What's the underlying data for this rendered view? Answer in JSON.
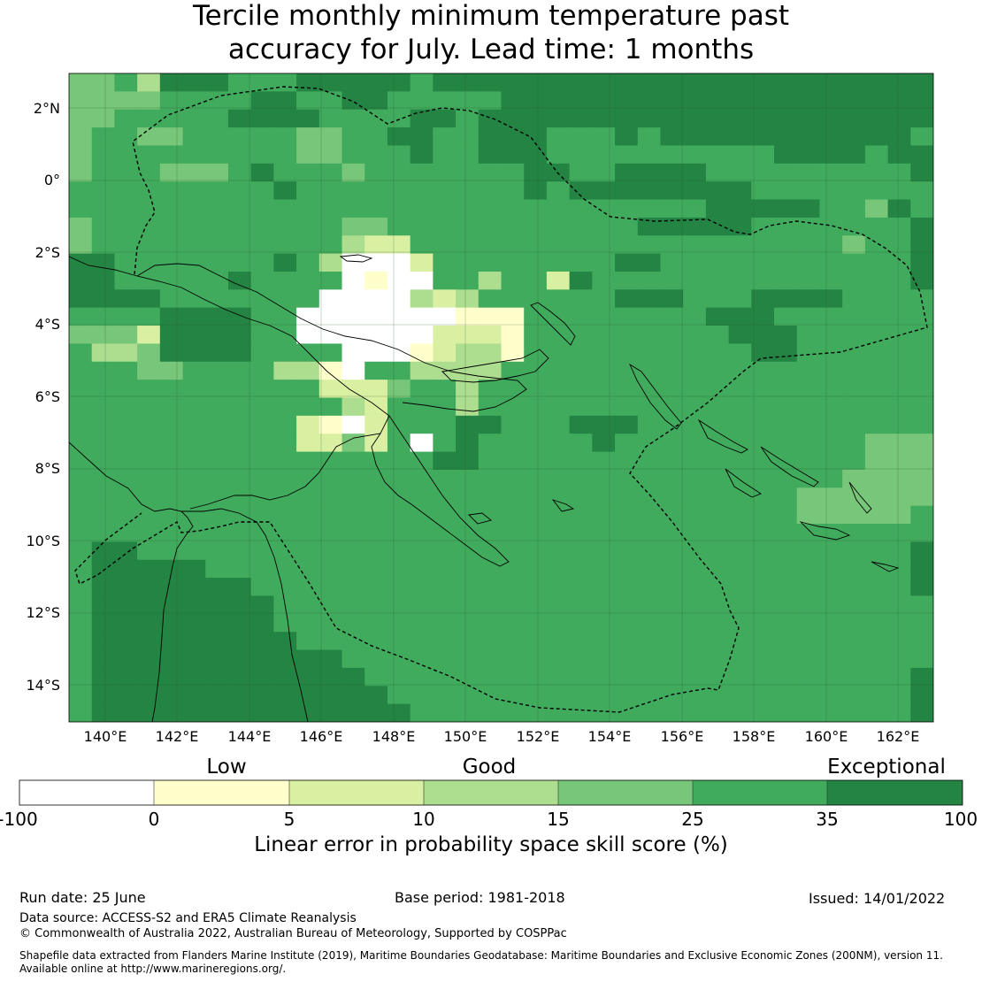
{
  "title_line1": "Tercile monthly minimum temperature past",
  "title_line2": "accuracy for July. Lead time: 1 months",
  "map": {
    "lat_labels": [
      "2°N",
      "0°",
      "2°S",
      "4°S",
      "6°S",
      "8°S",
      "10°S",
      "12°S",
      "14°S"
    ],
    "lon_labels": [
      "140°E",
      "142°E",
      "144°E",
      "146°E",
      "148°E",
      "150°E",
      "152°E",
      "154°E",
      "156°E",
      "158°E",
      "160°E",
      "162°E"
    ],
    "coastline_color": "#000000",
    "boundary_style": "dashed"
  },
  "colorbar": {
    "category_labels": [
      "Low",
      "Good",
      "Exceptional"
    ],
    "ticks": [
      "-100",
      "0",
      "5",
      "10",
      "15",
      "25",
      "35",
      "100"
    ],
    "colors": [
      "#ffffff",
      "#ffffcc",
      "#d9f0a3",
      "#addd8e",
      "#78c679",
      "#41ab5d",
      "#238443"
    ],
    "label": "Linear error in probability space skill score (%)"
  },
  "footer": {
    "run_date": "Run date: 25 June",
    "base_period": "Base period: 1981-2018",
    "issued": "Issued: 14/01/2022",
    "data_source": "Data source: ACCESS-S2 and ERA5 Climate Reanalysis",
    "copyright": "© Commonwealth of Australia 2022, Australian Bureau of Meteorology, Supported by COSPPac",
    "shapefile_line1": "Shapefile data extracted from Flanders Marine Institute (2019), Maritime Boundaries Geodatabase: Maritime Boundaries and Exclusive Economic Zones (200NM), version 11.",
    "shapefile_line2": "Available online at http://www.marineregions.org/."
  }
}
